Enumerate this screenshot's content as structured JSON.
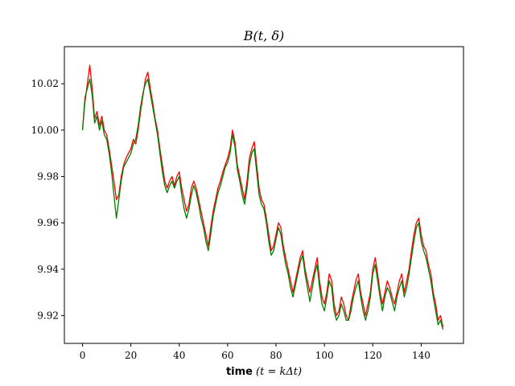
{
  "chart_data": {
    "type": "line",
    "title": "B(t, δ)",
    "xlabel": {
      "bold": "time",
      "math": "(t = kΔt)"
    },
    "ylabel": "",
    "xlim": [
      -7.5,
      157.5
    ],
    "ylim": [
      9.908,
      10.036
    ],
    "xticks": [
      0,
      20,
      40,
      60,
      80,
      100,
      120,
      140
    ],
    "yticks": [
      9.92,
      9.94,
      9.96,
      9.98,
      10.0,
      10.02
    ],
    "grid": false,
    "legend": false,
    "series": [
      {
        "color": "#ff0000",
        "x": [
          0,
          1,
          2,
          3,
          4,
          5,
          6,
          7,
          8,
          9,
          10,
          11,
          12,
          13,
          14,
          15,
          16,
          17,
          18,
          19,
          20,
          21,
          22,
          23,
          24,
          25,
          26,
          27,
          28,
          29,
          30,
          31,
          32,
          33,
          34,
          35,
          36,
          37,
          38,
          39,
          40,
          41,
          42,
          43,
          44,
          45,
          46,
          47,
          48,
          49,
          50,
          51,
          52,
          53,
          54,
          55,
          56,
          57,
          58,
          59,
          60,
          61,
          62,
          63,
          64,
          65,
          66,
          67,
          68,
          69,
          70,
          71,
          72,
          73,
          74,
          75,
          76,
          77,
          78,
          79,
          80,
          81,
          82,
          83,
          84,
          85,
          86,
          87,
          88,
          89,
          90,
          91,
          92,
          93,
          94,
          95,
          96,
          97,
          98,
          99,
          100,
          101,
          102,
          103,
          104,
          105,
          106,
          107,
          108,
          109,
          110,
          111,
          112,
          113,
          114,
          115,
          116,
          117,
          118,
          119,
          120,
          121,
          122,
          123,
          124,
          125,
          126,
          127,
          128,
          129,
          130,
          131,
          132,
          133,
          134,
          135,
          136,
          137,
          138,
          139,
          140,
          141,
          142,
          143,
          144,
          145,
          146,
          147,
          148,
          149
        ],
        "y": [
          10.0,
          10.012,
          10.02,
          10.028,
          10.018,
          10.005,
          10.008,
          10.002,
          10.006,
          10.0,
          9.998,
          9.992,
          9.985,
          9.978,
          9.97,
          9.972,
          9.98,
          9.985,
          9.988,
          9.99,
          9.992,
          9.996,
          9.994,
          10.0,
          10.008,
          10.015,
          10.022,
          10.025,
          10.018,
          10.012,
          10.005,
          10.0,
          9.992,
          9.985,
          9.978,
          9.975,
          9.978,
          9.98,
          9.976,
          9.98,
          9.982,
          9.975,
          9.97,
          9.965,
          9.968,
          9.975,
          9.978,
          9.975,
          9.97,
          9.965,
          9.96,
          9.955,
          9.95,
          9.958,
          9.965,
          9.97,
          9.975,
          9.978,
          9.982,
          9.985,
          9.988,
          9.992,
          10.0,
          9.995,
          9.985,
          9.98,
          9.975,
          9.97,
          9.978,
          9.988,
          9.992,
          9.995,
          9.985,
          9.975,
          9.97,
          9.968,
          9.962,
          9.955,
          9.948,
          9.95,
          9.955,
          9.96,
          9.958,
          9.95,
          9.945,
          9.94,
          9.935,
          9.93,
          9.935,
          9.94,
          9.945,
          9.948,
          9.94,
          9.935,
          9.93,
          9.935,
          9.94,
          9.945,
          9.935,
          9.928,
          9.925,
          9.93,
          9.938,
          9.935,
          9.925,
          9.92,
          9.922,
          9.928,
          9.925,
          9.92,
          9.918,
          9.925,
          9.93,
          9.935,
          9.938,
          9.93,
          9.925,
          9.92,
          9.925,
          9.93,
          9.94,
          9.945,
          9.938,
          9.93,
          9.925,
          9.93,
          9.935,
          9.932,
          9.928,
          9.925,
          9.93,
          9.935,
          9.938,
          9.93,
          9.935,
          9.94,
          9.948,
          9.955,
          9.96,
          9.962,
          9.955,
          9.95,
          9.948,
          9.942,
          9.938,
          9.93,
          9.925,
          9.918,
          9.92,
          9.915
        ]
      },
      {
        "color": "#008000",
        "x": [
          0,
          1,
          2,
          3,
          4,
          5,
          6,
          7,
          8,
          9,
          10,
          11,
          12,
          13,
          14,
          15,
          16,
          17,
          18,
          19,
          20,
          21,
          22,
          23,
          24,
          25,
          26,
          27,
          28,
          29,
          30,
          31,
          32,
          33,
          34,
          35,
          36,
          37,
          38,
          39,
          40,
          41,
          42,
          43,
          44,
          45,
          46,
          47,
          48,
          49,
          50,
          51,
          52,
          53,
          54,
          55,
          56,
          57,
          58,
          59,
          60,
          61,
          62,
          63,
          64,
          65,
          66,
          67,
          68,
          69,
          70,
          71,
          72,
          73,
          74,
          75,
          76,
          77,
          78,
          79,
          80,
          81,
          82,
          83,
          84,
          85,
          86,
          87,
          88,
          89,
          90,
          91,
          92,
          93,
          94,
          95,
          96,
          97,
          98,
          99,
          100,
          101,
          102,
          103,
          104,
          105,
          106,
          107,
          108,
          109,
          110,
          111,
          112,
          113,
          114,
          115,
          116,
          117,
          118,
          119,
          120,
          121,
          122,
          123,
          124,
          125,
          126,
          127,
          128,
          129,
          130,
          131,
          132,
          133,
          134,
          135,
          136,
          137,
          138,
          139,
          140,
          141,
          142,
          143,
          144,
          145,
          146,
          147,
          148,
          149
        ],
        "y": [
          10.0,
          10.014,
          10.018,
          10.022,
          10.015,
          10.003,
          10.006,
          10.0,
          10.004,
          9.998,
          9.996,
          9.99,
          9.982,
          9.972,
          9.962,
          9.97,
          9.978,
          9.984,
          9.986,
          9.988,
          9.99,
          9.994,
          9.996,
          10.002,
          10.01,
          10.016,
          10.02,
          10.022,
          10.016,
          10.01,
          10.004,
          9.998,
          9.99,
          9.982,
          9.976,
          9.973,
          9.976,
          9.978,
          9.975,
          9.978,
          9.98,
          9.972,
          9.966,
          9.962,
          9.966,
          9.972,
          9.976,
          9.973,
          9.968,
          9.962,
          9.958,
          9.952,
          9.948,
          9.955,
          9.963,
          9.968,
          9.973,
          9.976,
          9.98,
          9.984,
          9.986,
          9.99,
          9.998,
          9.993,
          9.983,
          9.978,
          9.972,
          9.968,
          9.975,
          9.985,
          9.99,
          9.992,
          9.982,
          9.972,
          9.968,
          9.966,
          9.96,
          9.952,
          9.946,
          9.948,
          9.953,
          9.958,
          9.955,
          9.948,
          9.942,
          9.938,
          9.932,
          9.928,
          9.933,
          9.938,
          9.943,
          9.946,
          9.938,
          9.932,
          9.926,
          9.932,
          9.938,
          9.942,
          9.932,
          9.925,
          9.922,
          9.928,
          9.935,
          9.932,
          9.922,
          9.918,
          9.92,
          9.925,
          9.922,
          9.918,
          9.918,
          9.922,
          9.928,
          9.932,
          9.935,
          9.928,
          9.922,
          9.918,
          9.922,
          9.928,
          9.938,
          9.942,
          9.935,
          9.928,
          9.922,
          9.928,
          9.932,
          9.93,
          9.926,
          9.922,
          9.928,
          9.932,
          9.935,
          9.928,
          9.932,
          9.938,
          9.945,
          9.952,
          9.958,
          9.96,
          9.952,
          9.948,
          9.945,
          9.94,
          9.935,
          9.928,
          9.922,
          9.916,
          9.918,
          9.914
        ]
      }
    ]
  }
}
